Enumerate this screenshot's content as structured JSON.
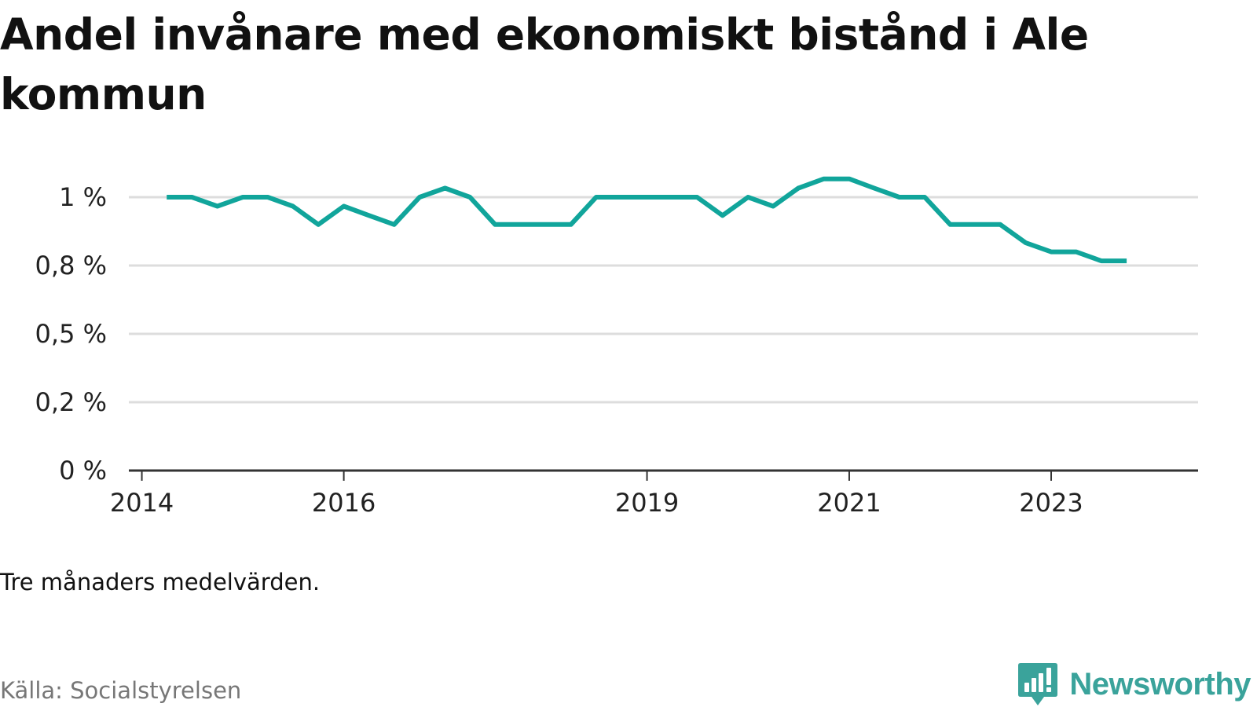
{
  "title": "Andel invånare med ekonomiskt bistånd i Ale kommun",
  "note": "Tre månaders medelvärden.",
  "source": "Källa: Socialstyrelsen",
  "brand": {
    "name": "Newsworthy",
    "icon": "newsworthy-logo-icon",
    "color": "#3aa39b"
  },
  "chart_data": {
    "type": "line",
    "title": "Andel invånare med ekonomiskt bistånd i Ale kommun",
    "xlabel": "",
    "ylabel": "",
    "grid": true,
    "line_color": "#11a59b",
    "y_ticks": [
      {
        "value": 0,
        "label": "0 %"
      },
      {
        "value": 0.25,
        "label": "0,2 %"
      },
      {
        "value": 0.5,
        "label": "0,5 %"
      },
      {
        "value": 0.75,
        "label": "0,8 %"
      },
      {
        "value": 1.0,
        "label": "1 %"
      }
    ],
    "ylim": [
      0,
      1.0
    ],
    "xlim": [
      "2013-11-15",
      "2024-06-15"
    ],
    "x_ticks": [
      {
        "value": "2014-01-01",
        "label": "2014"
      },
      {
        "value": "2016-01-01",
        "label": "2016"
      },
      {
        "value": "2019-01-01",
        "label": "2019"
      },
      {
        "value": "2021-01-01",
        "label": "2021"
      },
      {
        "value": "2023-01-01",
        "label": "2023"
      }
    ],
    "series": [
      {
        "x": [
          "2014-04-01",
          "2014-07-01",
          "2014-10-01",
          "2015-01-01",
          "2015-04-01",
          "2015-07-01",
          "2015-10-01",
          "2016-01-01",
          "2016-04-01",
          "2016-07-01",
          "2016-10-01",
          "2017-01-01",
          "2017-04-01",
          "2017-07-01",
          "2017-10-01",
          "2018-01-01",
          "2018-04-01",
          "2018-07-01",
          "2018-10-01",
          "2019-01-01",
          "2019-04-01",
          "2019-07-01",
          "2019-10-01",
          "2020-01-01",
          "2020-04-01",
          "2020-07-01",
          "2020-10-01",
          "2021-01-01",
          "2021-04-01",
          "2021-07-01",
          "2021-10-01",
          "2022-01-01",
          "2022-04-01",
          "2022-07-01",
          "2022-10-01",
          "2023-01-01",
          "2023-04-01",
          "2023-07-01",
          "2023-10-01"
        ],
        "values": [
          1.0,
          1.0,
          0.967,
          1.0,
          1.0,
          0.967,
          0.9,
          0.967,
          0.933,
          0.9,
          1.0,
          1.033,
          1.0,
          0.9,
          0.9,
          0.9,
          0.9,
          1.0,
          1.0,
          1.0,
          1.0,
          1.0,
          0.933,
          1.0,
          0.967,
          1.033,
          1.067,
          1.067,
          1.033,
          1.0,
          1.0,
          0.9,
          0.9,
          0.9,
          0.833,
          0.8,
          0.8,
          0.767,
          0.767
        ]
      }
    ]
  }
}
